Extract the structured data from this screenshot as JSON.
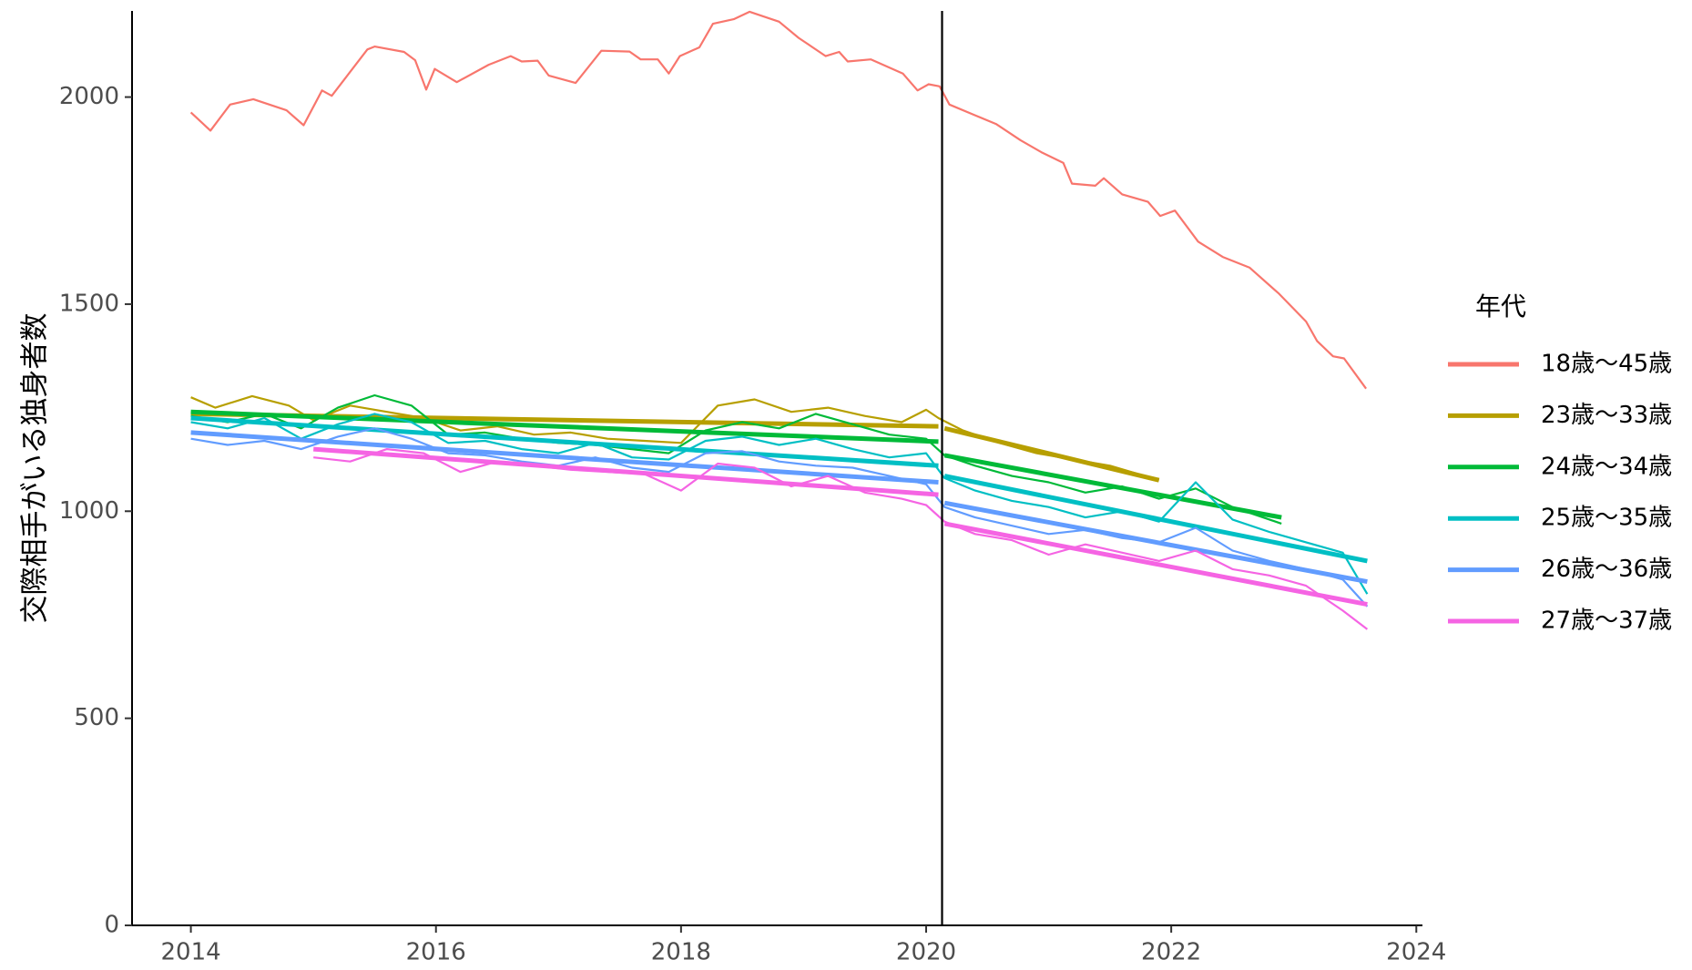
{
  "chart_data": {
    "type": "line",
    "y_label": "交際相手がいる独身者数",
    "legend_title": "年代",
    "legend": "right",
    "grid": false,
    "xlim": [
      2013.52,
      2024.05
    ],
    "ylim": [
      0,
      2208
    ],
    "xticks": [
      2014,
      2016,
      2018,
      2020,
      2022,
      2024
    ],
    "yticks": [
      0,
      500,
      1000,
      1500,
      2000
    ],
    "vline": 2020.13,
    "series": [
      {
        "name": "18歳～45歳",
        "color": "#F8766D",
        "x": [
          2014.0,
          2014.16,
          2014.32,
          2014.51,
          2014.78,
          2014.92,
          2015.07,
          2015.15,
          2015.44,
          2015.5,
          2015.74,
          2015.83,
          2015.92,
          2015.99,
          2016.17,
          2016.43,
          2016.61,
          2016.7,
          2016.83,
          2016.92,
          2017.14,
          2017.35,
          2017.58,
          2017.67,
          2017.81,
          2017.9,
          2017.99,
          2018.15,
          2018.26,
          2018.43,
          2018.56,
          2018.8,
          2018.96,
          2019.18,
          2019.29,
          2019.36,
          2019.55,
          2019.81,
          2019.93,
          2020.02,
          2020.11,
          2020.19,
          2020.4,
          2020.57,
          2020.77,
          2020.94,
          2021.12,
          2021.19,
          2021.38,
          2021.45,
          2021.6,
          2021.81,
          2021.91,
          2022.03,
          2022.22,
          2022.42,
          2022.64,
          2022.88,
          2023.1,
          2023.19,
          2023.32,
          2023.41,
          2023.59
        ],
        "values": [
          1963,
          1919,
          1982,
          1995,
          1968,
          1932,
          2016,
          2003,
          2115,
          2122,
          2109,
          2089,
          2018,
          2068,
          2036,
          2078,
          2099,
          2086,
          2088,
          2052,
          2034,
          2112,
          2110,
          2091,
          2091,
          2057,
          2099,
          2120,
          2177,
          2188,
          2206,
          2182,
          2143,
          2099,
          2109,
          2086,
          2091,
          2057,
          2016,
          2031,
          2026,
          1982,
          1956,
          1935,
          1896,
          1867,
          1841,
          1791,
          1786,
          1804,
          1765,
          1747,
          1713,
          1726,
          1651,
          1614,
          1588,
          1525,
          1458,
          1411,
          1374,
          1369,
          1296
        ],
        "fit": []
      },
      {
        "name": "23歳～33歳",
        "color": "#B79F00",
        "x": [
          2014.0,
          2014.2,
          2014.5,
          2014.8,
          2015.0,
          2015.3,
          2015.6,
          2015.9,
          2016.2,
          2016.5,
          2016.8,
          2017.1,
          2017.4,
          2017.7,
          2018.0,
          2018.3,
          2018.6,
          2018.9,
          2019.2,
          2019.5,
          2019.8,
          2020.0,
          2020.1,
          2020.3,
          2020.6,
          2020.9,
          2021.2,
          2021.5,
          2021.9
        ],
        "values": [
          1275,
          1250,
          1278,
          1255,
          1220,
          1255,
          1240,
          1225,
          1195,
          1205,
          1185,
          1190,
          1175,
          1170,
          1165,
          1255,
          1270,
          1240,
          1250,
          1230,
          1215,
          1245,
          1225,
          1195,
          1165,
          1140,
          1125,
          1110,
          1075
        ],
        "fit": [
          {
            "x": [
              2014.0,
              2020.1
            ],
            "values": [
              1235,
              1205
            ]
          },
          {
            "x": [
              2020.15,
              2021.9
            ],
            "values": [
              1200,
              1075
            ]
          }
        ]
      },
      {
        "name": "24歳～34歳",
        "color": "#00BA38",
        "x": [
          2014.0,
          2014.3,
          2014.6,
          2014.9,
          2015.2,
          2015.5,
          2015.8,
          2016.1,
          2016.4,
          2016.7,
          2017.0,
          2017.3,
          2017.6,
          2017.9,
          2018.2,
          2018.5,
          2018.8,
          2019.1,
          2019.4,
          2019.7,
          2020.0,
          2020.15,
          2020.4,
          2020.7,
          2021.0,
          2021.3,
          2021.6,
          2021.9,
          2022.2,
          2022.5,
          2022.9
        ],
        "values": [
          1230,
          1215,
          1235,
          1200,
          1250,
          1280,
          1255,
          1185,
          1190,
          1175,
          1165,
          1160,
          1150,
          1140,
          1195,
          1215,
          1200,
          1235,
          1210,
          1185,
          1175,
          1135,
          1110,
          1085,
          1070,
          1045,
          1060,
          1030,
          1055,
          1010,
          970
        ],
        "fit": [
          {
            "x": [
              2014.0,
              2020.1
            ],
            "values": [
              1240,
              1168
            ]
          },
          {
            "x": [
              2020.15,
              2022.9
            ],
            "values": [
              1135,
              985
            ]
          }
        ]
      },
      {
        "name": "25歳～35歳",
        "color": "#00BFC4",
        "x": [
          2014.0,
          2014.3,
          2014.6,
          2014.9,
          2015.2,
          2015.5,
          2015.8,
          2016.1,
          2016.4,
          2016.7,
          2017.0,
          2017.3,
          2017.6,
          2017.9,
          2018.2,
          2018.5,
          2018.8,
          2019.1,
          2019.4,
          2019.7,
          2020.0,
          2020.15,
          2020.4,
          2020.7,
          2021.0,
          2021.3,
          2021.6,
          2021.9,
          2022.2,
          2022.5,
          2022.8,
          2023.1,
          2023.4,
          2023.6
        ],
        "values": [
          1215,
          1200,
          1225,
          1175,
          1210,
          1235,
          1215,
          1165,
          1170,
          1150,
          1140,
          1165,
          1130,
          1125,
          1170,
          1180,
          1160,
          1175,
          1150,
          1130,
          1140,
          1080,
          1050,
          1025,
          1010,
          985,
          1000,
          975,
          1070,
          980,
          950,
          925,
          900,
          800
        ],
        "fit": [
          {
            "x": [
              2014.0,
              2020.1
            ],
            "values": [
              1225,
              1110
            ]
          },
          {
            "x": [
              2020.15,
              2023.6
            ],
            "values": [
              1085,
              880
            ]
          }
        ]
      },
      {
        "name": "26歳～36歳",
        "color": "#619CFF",
        "x": [
          2014.0,
          2014.3,
          2014.6,
          2014.9,
          2015.2,
          2015.5,
          2015.8,
          2016.1,
          2016.4,
          2016.7,
          2017.0,
          2017.3,
          2017.6,
          2017.9,
          2018.2,
          2018.5,
          2018.8,
          2019.1,
          2019.4,
          2019.7,
          2020.0,
          2020.15,
          2020.4,
          2020.7,
          2021.0,
          2021.3,
          2021.6,
          2021.9,
          2022.2,
          2022.5,
          2022.8,
          2023.1,
          2023.4,
          2023.6
        ],
        "values": [
          1175,
          1160,
          1170,
          1150,
          1180,
          1200,
          1175,
          1140,
          1135,
          1120,
          1110,
          1130,
          1105,
          1095,
          1140,
          1145,
          1120,
          1110,
          1105,
          1085,
          1065,
          1010,
          985,
          965,
          945,
          955,
          935,
          925,
          960,
          905,
          880,
          860,
          835,
          770
        ],
        "fit": [
          {
            "x": [
              2014.0,
              2020.1
            ],
            "values": [
              1190,
              1070
            ]
          },
          {
            "x": [
              2020.15,
              2023.6
            ],
            "values": [
              1020,
              830
            ]
          }
        ]
      },
      {
        "name": "27歳～37歳",
        "color": "#F564E3",
        "x": [
          2015.0,
          2015.3,
          2015.6,
          2015.9,
          2016.2,
          2016.5,
          2016.8,
          2017.1,
          2017.4,
          2017.7,
          2018.0,
          2018.3,
          2018.6,
          2018.9,
          2019.2,
          2019.5,
          2019.8,
          2020.0,
          2020.15,
          2020.4,
          2020.7,
          2021.0,
          2021.3,
          2021.6,
          2021.9,
          2022.2,
          2022.5,
          2022.8,
          2023.1,
          2023.4,
          2023.6
        ],
        "values": [
          1130,
          1120,
          1150,
          1140,
          1095,
          1120,
          1110,
          1100,
          1095,
          1090,
          1050,
          1115,
          1105,
          1060,
          1085,
          1045,
          1030,
          1015,
          975,
          945,
          930,
          895,
          920,
          900,
          880,
          905,
          860,
          845,
          820,
          760,
          715
        ],
        "fit": [
          {
            "x": [
              2015.0,
              2020.1
            ],
            "values": [
              1150,
              1040
            ]
          },
          {
            "x": [
              2020.15,
              2023.6
            ],
            "values": [
              970,
              775
            ]
          }
        ]
      }
    ]
  }
}
